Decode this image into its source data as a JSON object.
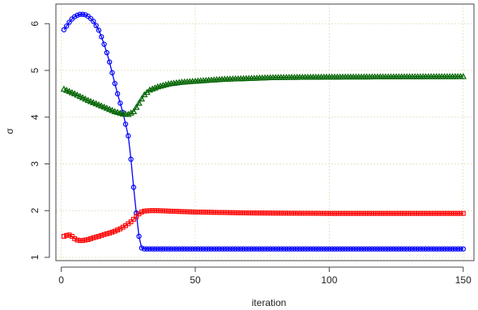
{
  "chart_data": {
    "type": "line",
    "title": "",
    "xlabel": "iteration",
    "ylabel": "σ",
    "xlim": [
      -2,
      154
    ],
    "ylim": [
      0.93,
      6.42
    ],
    "xticks": [
      0,
      50,
      100,
      150
    ],
    "yticks": [
      1,
      2,
      3,
      4,
      5,
      6
    ],
    "grid": true,
    "legend": "none",
    "series": [
      {
        "color": "#0000ff",
        "marker": "circle",
        "knots": [
          [
            1,
            5.87
          ],
          [
            2,
            5.95
          ],
          [
            3,
            6.03
          ],
          [
            4,
            6.1
          ],
          [
            5,
            6.15
          ],
          [
            6,
            6.18
          ],
          [
            7,
            6.2
          ],
          [
            8,
            6.2
          ],
          [
            9,
            6.19
          ],
          [
            10,
            6.16
          ],
          [
            11,
            6.11
          ],
          [
            12,
            6.05
          ],
          [
            13,
            5.96
          ],
          [
            14,
            5.86
          ],
          [
            15,
            5.72
          ],
          [
            16,
            5.56
          ],
          [
            17,
            5.38
          ],
          [
            18,
            5.18
          ],
          [
            19,
            4.95
          ],
          [
            20,
            4.72
          ],
          [
            21,
            4.5
          ],
          [
            22,
            4.3
          ],
          [
            23,
            4.1
          ],
          [
            24,
            3.85
          ],
          [
            25,
            3.6
          ],
          [
            26,
            3.1
          ],
          [
            27,
            2.5
          ],
          [
            28,
            1.95
          ],
          [
            29,
            1.45
          ],
          [
            30,
            1.2
          ],
          [
            31,
            1.18
          ],
          [
            150,
            1.18
          ]
        ]
      },
      {
        "color": "#006400",
        "marker": "triangle",
        "knots": [
          [
            1,
            4.6
          ],
          [
            5,
            4.5
          ],
          [
            10,
            4.36
          ],
          [
            15,
            4.24
          ],
          [
            20,
            4.12
          ],
          [
            23,
            4.07
          ],
          [
            25,
            4.06
          ],
          [
            27,
            4.12
          ],
          [
            29,
            4.3
          ],
          [
            31,
            4.48
          ],
          [
            33,
            4.58
          ],
          [
            36,
            4.65
          ],
          [
            40,
            4.71
          ],
          [
            45,
            4.75
          ],
          [
            50,
            4.77
          ],
          [
            60,
            4.81
          ],
          [
            70,
            4.83
          ],
          [
            80,
            4.85
          ],
          [
            100,
            4.86
          ],
          [
            150,
            4.87
          ]
        ]
      },
      {
        "color": "#ff0000",
        "marker": "square",
        "knots": [
          [
            1,
            1.45
          ],
          [
            2,
            1.47
          ],
          [
            3,
            1.48
          ],
          [
            4,
            1.45
          ],
          [
            5,
            1.4
          ],
          [
            6,
            1.37
          ],
          [
            7,
            1.36
          ],
          [
            8,
            1.36
          ],
          [
            10,
            1.38
          ],
          [
            12,
            1.42
          ],
          [
            14,
            1.45
          ],
          [
            16,
            1.49
          ],
          [
            18,
            1.52
          ],
          [
            20,
            1.56
          ],
          [
            22,
            1.61
          ],
          [
            24,
            1.68
          ],
          [
            26,
            1.76
          ],
          [
            28,
            1.87
          ],
          [
            29,
            1.93
          ],
          [
            30,
            1.97
          ],
          [
            31,
            1.99
          ],
          [
            33,
            2.0
          ],
          [
            36,
            2.0
          ],
          [
            40,
            1.99
          ],
          [
            50,
            1.97
          ],
          [
            70,
            1.95
          ],
          [
            100,
            1.94
          ],
          [
            150,
            1.94
          ]
        ]
      }
    ]
  }
}
